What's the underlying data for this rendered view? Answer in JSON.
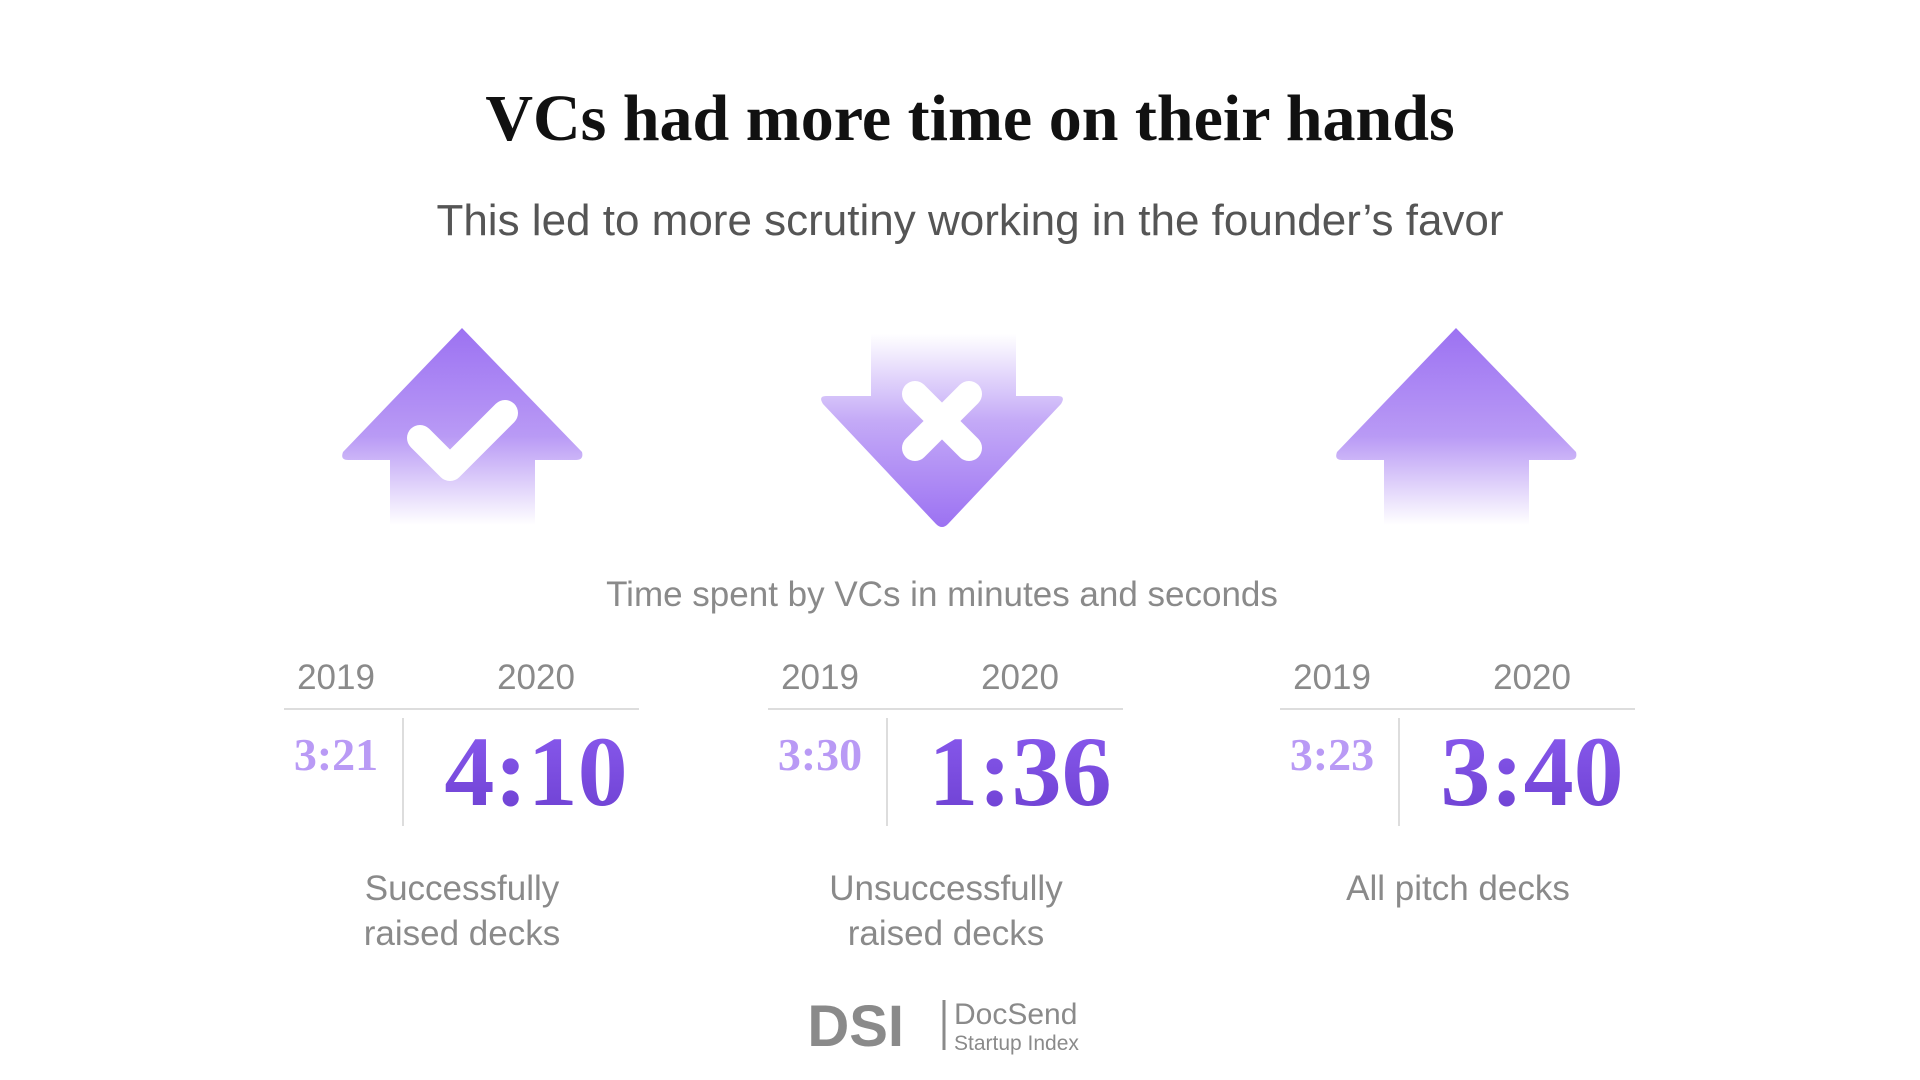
{
  "header": {
    "title": "VCs had more time on their hands",
    "subtitle": "This led to more scrutiny working in the founder’s favor"
  },
  "caption": "Time spent by VCs in minutes and seconds",
  "panels": [
    {
      "years": [
        "2019",
        "2020"
      ],
      "times": [
        "3:21",
        "4:10"
      ],
      "label": [
        "Successfully",
        "raised decks"
      ]
    },
    {
      "years": [
        "2019",
        "2020"
      ],
      "times": [
        "3:30",
        "1:36"
      ],
      "label": [
        "Unsuccessfully",
        "raised decks"
      ]
    },
    {
      "years": [
        "2019",
        "2020"
      ],
      "times": [
        "3:23",
        "3:40"
      ],
      "label": [
        "All pitch decks"
      ]
    }
  ],
  "footer": {
    "mark": "DSI",
    "brand": "DocSend",
    "tagline": "Startup Index"
  }
}
